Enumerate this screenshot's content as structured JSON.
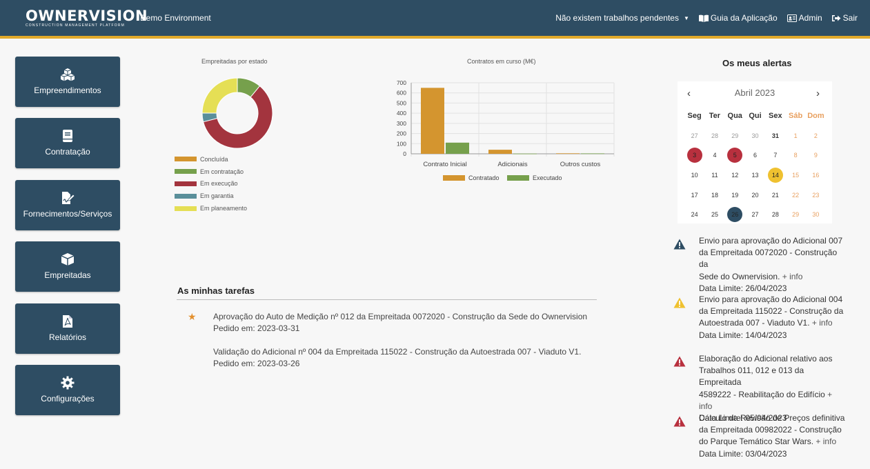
{
  "header": {
    "logo": "OWNERVISION",
    "logo_sub": "CONSTRUCTION MANAGEMENT PLATFORM",
    "environment": "Demo Environment",
    "pending": "Não existem trabalhos pendentes",
    "guide": "Guia da Aplicação",
    "admin": "Admin",
    "logout": "Sair"
  },
  "sidebar": {
    "items": [
      {
        "label": "Empreendimentos",
        "icon": "cubes-icon"
      },
      {
        "label": "Contratação",
        "icon": "book-icon"
      },
      {
        "label": "Fornecimentos/Serviços",
        "icon": "file-signature-icon"
      },
      {
        "label": "Empreitadas",
        "icon": "box-icon"
      },
      {
        "label": "Relatórios",
        "icon": "pdf-file-icon"
      },
      {
        "label": "Configurações",
        "icon": "gear-icon"
      }
    ]
  },
  "chart_data": [
    {
      "type": "pie",
      "title": "Empreitadas por estado",
      "categories": [
        "Concluída",
        "Em contratação",
        "Em execução",
        "Em garantia",
        "Em planeamento"
      ],
      "values": [
        0,
        11,
        60,
        4,
        25
      ],
      "colors": [
        "#d4952f",
        "#76a04c",
        "#a3343e",
        "#5a8f9a",
        "#e5df55"
      ],
      "legend": "bottom-left"
    },
    {
      "type": "bar",
      "title": "Contratos em curso (M€)",
      "categories": [
        "Contrato Inicial",
        "Adicionais",
        "Outros custos"
      ],
      "series": [
        {
          "name": "Contratado",
          "values": [
            650,
            40,
            5
          ],
          "color": "#d4952f"
        },
        {
          "name": "Executado",
          "values": [
            110,
            2,
            4
          ],
          "color": "#76a04c"
        }
      ],
      "yticks": [
        "700",
        "600",
        "500",
        "400",
        "300",
        "200",
        "100",
        "0"
      ],
      "ylim": [
        0,
        700
      ],
      "grid": true,
      "legend": "bottom"
    }
  ],
  "tasks": {
    "title": "As minhas tarefas",
    "items": [
      {
        "text": "Aprovação do Auto de Medição nº 012 da Empreitada 0072020 - Construção da Sede do Ownervision",
        "date": "Pedido em: 2023-03-31",
        "starred": true
      },
      {
        "text": "Validação do Adicional nº 004 da Empreitada 115022 - Construção da Autoestrada 007 - Viaduto V1.",
        "date": "Pedido em: 2023-03-26",
        "starred": false
      }
    ]
  },
  "alerts": {
    "title": "Os meus alertas",
    "calendar": {
      "month": "Abril 2023",
      "prev": "‹",
      "next": "›",
      "weekdays": [
        "Seg",
        "Ter",
        "Qua",
        "Qui",
        "Sex",
        "Sáb",
        "Dom"
      ],
      "weeks": [
        [
          "27",
          "28",
          "29",
          "30",
          "31",
          "1",
          "2"
        ],
        [
          "3",
          "4",
          "5",
          "6",
          "7",
          "8",
          "9"
        ],
        [
          "10",
          "11",
          "12",
          "13",
          "14",
          "15",
          "16"
        ],
        [
          "17",
          "18",
          "19",
          "20",
          "21",
          "22",
          "23"
        ],
        [
          "24",
          "25",
          "26",
          "27",
          "28",
          "29",
          "30"
        ]
      ]
    },
    "items": [
      {
        "line1": "Envio para aprovação do Adicional 007",
        "line2": "da Empreitada 0072020 - Construção da",
        "line3": "Sede do Ownervision.",
        "info": "+ info",
        "limit": "Data Limite: 26/04/2023",
        "level": "info",
        "color": "#2e4d63"
      },
      {
        "line1": "Envio para aprovação do Adicional 004",
        "line2": "da Empreitada 115022 - Construção da",
        "line3": "Autoestrada 007 - Viaduto V1.",
        "info": "+ info",
        "limit": "Data Limite: 14/04/2023",
        "level": "warning",
        "color": "#efc130"
      },
      {
        "line1": "Elaboração do Adicional relativo aos",
        "line2": "Trabalhos 011, 012 e 013 da Empreitada",
        "line3": "4589222 - Reabilitação do Edifício",
        "info": "+ info",
        "limit": "Data Limite: 05/04/2023",
        "level": "danger",
        "color": "#b8303e"
      },
      {
        "line1": "Cálculo da Revisão de Preços definitiva",
        "line2": "da Empreitada 00982022 - Construção",
        "line3": "do Parque Temático Star Wars.",
        "info": "+ info",
        "limit": "Data Limite: 03/04/2023",
        "level": "danger",
        "color": "#b8303e"
      }
    ]
  }
}
